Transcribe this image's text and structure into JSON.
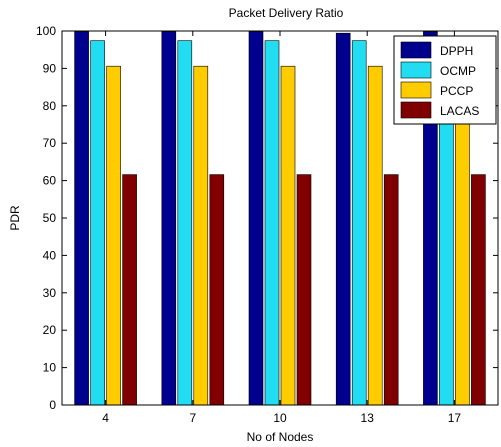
{
  "chart_data": {
    "type": "bar",
    "title": "Packet Delivery Ratio",
    "xlabel": "No of Nodes",
    "ylabel": "PDR",
    "categories": [
      "4",
      "7",
      "10",
      "13",
      "17"
    ],
    "ylim": [
      0,
      100
    ],
    "yticks": [
      0,
      10,
      20,
      30,
      40,
      50,
      60,
      70,
      80,
      90,
      100
    ],
    "legend_position": "top-right",
    "grid": false,
    "series": [
      {
        "name": "DPPH",
        "color": "#00008f",
        "values": [
          99.8,
          99.8,
          99.8,
          99.4,
          99.8
        ]
      },
      {
        "name": "OCMP",
        "color": "#22dcf2",
        "values": [
          97.4,
          97.4,
          97.4,
          97.4,
          97.4
        ]
      },
      {
        "name": "PCCP",
        "color": "#ffcc00",
        "values": [
          90.6,
          90.6,
          90.6,
          90.6,
          90.6
        ]
      },
      {
        "name": "LACAS",
        "color": "#800000",
        "values": [
          61.6,
          61.6,
          61.6,
          61.6,
          61.6
        ]
      }
    ]
  }
}
